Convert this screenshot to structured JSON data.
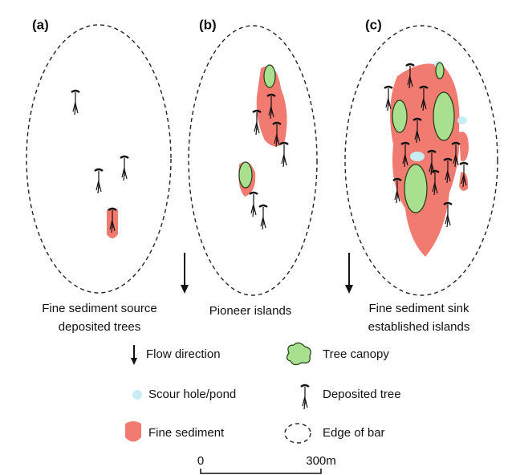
{
  "panels": [
    {
      "label": "(a)",
      "caption": [
        "Fine sediment source",
        "deposited trees"
      ]
    },
    {
      "label": "(b)",
      "caption": [
        "Pioneer islands"
      ]
    },
    {
      "label": "(c)",
      "caption": [
        "Fine sediment sink",
        "established islands"
      ]
    }
  ],
  "legend": [
    {
      "label": "Flow direction"
    },
    {
      "label": "Tree canopy"
    },
    {
      "label": "Scour hole/pond"
    },
    {
      "label": "Deposited tree"
    },
    {
      "label": "Fine sediment"
    },
    {
      "label": "Edge of bar"
    }
  ],
  "scale_bar": {
    "labels": [
      "0",
      "300m"
    ]
  }
}
